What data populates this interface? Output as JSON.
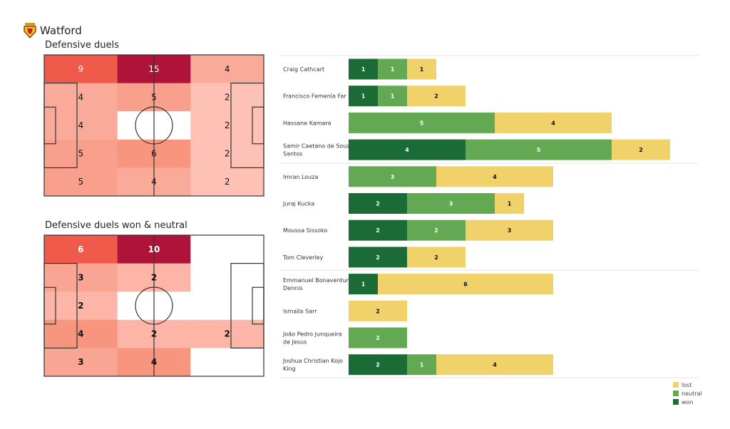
{
  "team": "Watford",
  "colors": {
    "won": "#1a6b35",
    "neutral": "#63a853",
    "lost": "#f0d16a",
    "heat_max": "#b0133a"
  },
  "chart_data": [
    {
      "type": "heatmap",
      "title": "Defensive duels",
      "grid_rows": 5,
      "grid_cols": 3,
      "values": [
        [
          9,
          15,
          4
        ],
        [
          4,
          5,
          2
        ],
        [
          4,
          0,
          2
        ],
        [
          5,
          6,
          2
        ],
        [
          5,
          4,
          2
        ]
      ],
      "labels": [
        [
          "9",
          "15",
          "4"
        ],
        [
          "4",
          "5",
          "2"
        ],
        [
          "4",
          "",
          "2"
        ],
        [
          "5",
          "6",
          "2"
        ],
        [
          "5",
          "4",
          "2"
        ]
      ]
    },
    {
      "type": "heatmap",
      "title": "Defensive duels won & neutral",
      "grid_rows": 5,
      "grid_cols": 3,
      "values": [
        [
          6,
          10,
          0
        ],
        [
          3,
          2,
          0
        ],
        [
          2,
          0,
          0
        ],
        [
          4,
          2,
          2
        ],
        [
          3,
          4,
          0
        ]
      ],
      "labels": [
        [
          "6",
          "10",
          ""
        ],
        [
          "3",
          "2",
          ""
        ],
        [
          "2",
          "",
          ""
        ],
        [
          "4",
          "2",
          "2"
        ],
        [
          "3",
          "4",
          ""
        ]
      ]
    },
    {
      "type": "bar",
      "orientation": "horizontal",
      "stacked": true,
      "legend_position": "bottom-right",
      "series_names": [
        "won",
        "neutral",
        "lost"
      ],
      "legend": [
        "lost",
        "neutral",
        "won"
      ],
      "groups": [
        [
          0,
          1,
          2,
          3
        ],
        [
          4,
          5,
          6,
          7
        ],
        [
          8,
          9,
          10,
          11
        ]
      ],
      "players": [
        {
          "name": "Craig Cathcart",
          "won": 1,
          "neutral": 1,
          "lost": 1
        },
        {
          "name": "Francisco Femenía Far",
          "won": 1,
          "neutral": 1,
          "lost": 2
        },
        {
          "name": "Hassane Kamara",
          "won": 0,
          "neutral": 5,
          "lost": 4
        },
        {
          "name": "Samir Caetano de Souza Santos",
          "won": 4,
          "neutral": 5,
          "lost": 2
        },
        {
          "name": "Imran Louza",
          "won": 0,
          "neutral": 3,
          "lost": 4
        },
        {
          "name": "Juraj Kucka",
          "won": 2,
          "neutral": 3,
          "lost": 1
        },
        {
          "name": "Moussa Sissoko",
          "won": 2,
          "neutral": 2,
          "lost": 3
        },
        {
          "name": "Tom Cleverley",
          "won": 2,
          "neutral": 0,
          "lost": 2
        },
        {
          "name": "Emmanuel Bonaventure Dennis",
          "won": 1,
          "neutral": 0,
          "lost": 6
        },
        {
          "name": "Ismaïla Sarr",
          "won": 0,
          "neutral": 0,
          "lost": 2
        },
        {
          "name": "João Pedro Junqueira de Jesus",
          "won": 0,
          "neutral": 2,
          "lost": 0
        },
        {
          "name": "Joshua Christian Kojo King",
          "won": 2,
          "neutral": 1,
          "lost": 4
        }
      ]
    }
  ]
}
